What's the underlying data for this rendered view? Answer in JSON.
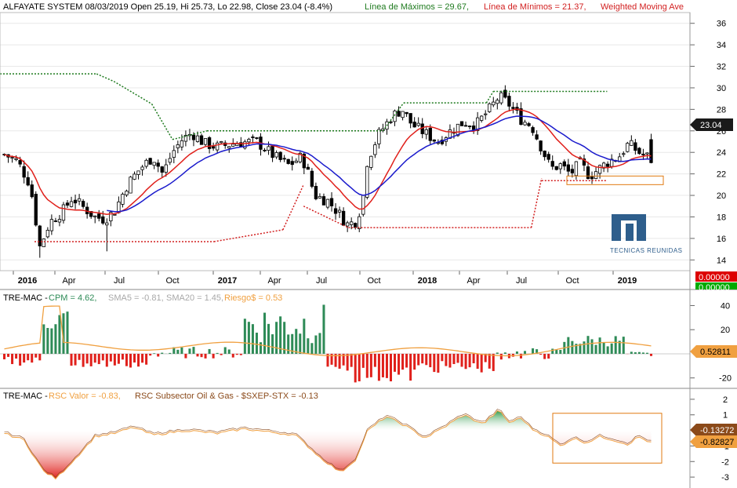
{
  "main_panel": {
    "header": {
      "symbol_info": "ALFAYATE SYSTEM 08/03/2019 Open 25.19, Hi 25.73, Lo 22.98, Close 23.04 (-8.4%)",
      "max_line_label": "Línea de Máximos = 29.67,",
      "min_line_label": "Línea de Mínimos = 21.37,",
      "wma_label": "Weighted Moving Ave"
    },
    "price_badge": "23.04",
    "red_badge": "0.00000",
    "green_badge": "0.00000",
    "x_labels": [
      {
        "text": "2016",
        "bold": true
      },
      {
        "text": "Apr",
        "bold": false
      },
      {
        "text": "Jul",
        "bold": false
      },
      {
        "text": "Oct",
        "bold": false
      },
      {
        "text": "2017",
        "bold": true
      },
      {
        "text": "Apr",
        "bold": false
      },
      {
        "text": "Jul",
        "bold": false
      },
      {
        "text": "Oct",
        "bold": false
      },
      {
        "text": "2018",
        "bold": true
      },
      {
        "text": "Apr",
        "bold": false
      },
      {
        "text": "Jul",
        "bold": false
      },
      {
        "text": "Oct",
        "bold": false
      },
      {
        "text": "2019",
        "bold": true
      }
    ],
    "watermark_text": "TECNICAS REUNIDAS"
  },
  "macd_panel": {
    "header": {
      "name": "TRE-MAC -",
      "cpm": "CPM = 4.62,",
      "sma5": "SMA5 = -0.81,",
      "sma20": "SMA20 = 1.45,",
      "riesgo": "Riesgo$ = 0.53"
    },
    "badge": "0.52811"
  },
  "rsc_panel": {
    "header": {
      "name": "TRE-MAC -",
      "valor": "RSC Valor = -0.83,",
      "subsector": "RSC Subsector Oil & Gas - $SXEP-STX = -0.13"
    },
    "badge_sub": "-0.13272",
    "badge_val": "-0.82827"
  },
  "colors": {
    "bull": "#2e8b57",
    "bear": "#e0201b",
    "wma": "#e0201b",
    "sma_blue": "#1a1acc",
    "max_line": "#1e7a1e",
    "min_line": "#d22020",
    "highlight_box": "#e07a10",
    "macd_orange": "#f0a040",
    "rsc_orange": "#f0a040",
    "rsc_brown": "#8b4a1a",
    "badge_dark": "#1a1a1a",
    "badge_orange": "#f0a040",
    "badge_red": "#dd0000",
    "badge_green": "#00aa00",
    "watermark": "#2e5e8c"
  },
  "chart_data": [
    {
      "type": "candlestick",
      "ylim": [
        13,
        37
      ],
      "y_ticks": [
        14,
        16,
        18,
        20,
        22,
        24,
        26,
        28,
        30,
        32,
        34,
        36
      ],
      "max_line_pieces": [
        {
          "x": [
            0,
            0.14
          ],
          "y": [
            31.3,
            31.3
          ]
        },
        {
          "x": [
            0.14,
            0.165
          ],
          "y": [
            31.3,
            30.6
          ]
        },
        {
          "x": [
            0.165,
            0.22
          ],
          "y": [
            30.6,
            28.5
          ]
        },
        {
          "x": [
            0.22,
            0.25
          ],
          "y": [
            28.5,
            25.2
          ]
        },
        {
          "x": [
            0.25,
            0.3
          ],
          "y": [
            25.2,
            26.0
          ]
        },
        {
          "x": [
            0.3,
            0.555
          ],
          "y": [
            26.0,
            26.0
          ]
        },
        {
          "x": [
            0.555,
            0.585
          ],
          "y": [
            26.0,
            28.6
          ]
        },
        {
          "x": [
            0.585,
            0.705
          ],
          "y": [
            28.6,
            28.6
          ]
        },
        {
          "x": [
            0.705,
            0.715
          ],
          "y": [
            28.6,
            29.67
          ]
        },
        {
          "x": [
            0.715,
            0.88
          ],
          "y": [
            29.67,
            29.67
          ]
        }
      ],
      "min_line_pieces": [
        {
          "x": [
            0.05,
            0.31
          ],
          "y": [
            15.7,
            15.7
          ]
        },
        {
          "x": [
            0.31,
            0.41
          ],
          "y": [
            15.7,
            16.8
          ]
        },
        {
          "x": [
            0.41,
            0.44
          ],
          "y": [
            16.8,
            21.0
          ]
        },
        {
          "x": [
            0.44,
            0.505
          ],
          "y": [
            19.0,
            17.0
          ]
        },
        {
          "x": [
            0.505,
            0.77
          ],
          "y": [
            17.0,
            17.0
          ]
        },
        {
          "x": [
            0.77,
            0.785
          ],
          "y": [
            17.0,
            21.6
          ]
        },
        {
          "x": [
            0.785,
            0.88
          ],
          "y": [
            21.37,
            21.37
          ]
        }
      ],
      "highlight_box_y": [
        21.0,
        21.8
      ],
      "last": {
        "open": 25.19,
        "high": 25.73,
        "low": 22.98,
        "close": 23.04
      }
    },
    {
      "type": "bar",
      "ylim": [
        -28,
        52
      ],
      "y_ticks": [
        40,
        20,
        -20
      ],
      "name": "MACD histogram"
    },
    {
      "type": "area",
      "ylim": [
        -3.6,
        2.6
      ],
      "y_ticks": [
        2,
        1,
        -1,
        -2,
        -3
      ]
    }
  ]
}
